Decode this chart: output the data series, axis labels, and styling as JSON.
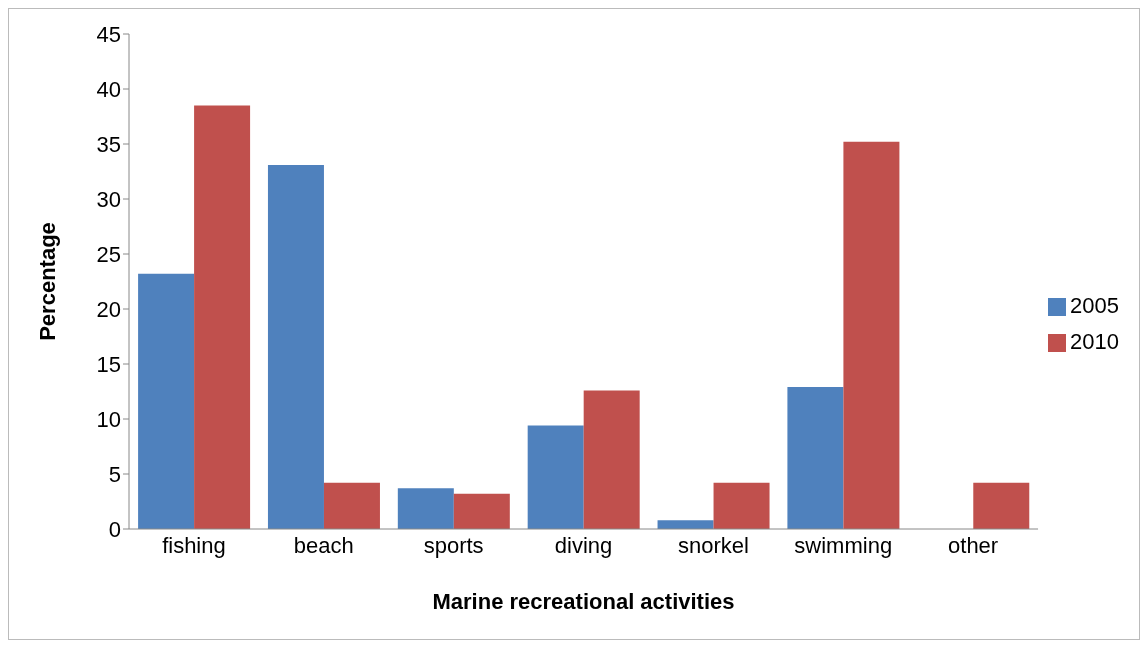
{
  "chart_data": {
    "type": "bar",
    "xlabel": "Marine recreational activities",
    "ylabel": "Percentage",
    "categories": [
      "fishing",
      "beach",
      "sports",
      "diving",
      "snorkel",
      "swimming",
      "other"
    ],
    "series": [
      {
        "name": "2005",
        "color": "#4f81bd",
        "values": [
          23.2,
          33.1,
          3.7,
          9.4,
          0.8,
          12.9,
          0
        ]
      },
      {
        "name": "2010",
        "color": "#c0504d",
        "values": [
          38.5,
          4.2,
          3.2,
          12.6,
          4.2,
          35.2,
          4.2
        ]
      }
    ],
    "ylim": [
      0,
      45
    ],
    "yticks": [
      0,
      5,
      10,
      15,
      20,
      25,
      30,
      35,
      40,
      45
    ],
    "grid": false,
    "legend": "right"
  }
}
